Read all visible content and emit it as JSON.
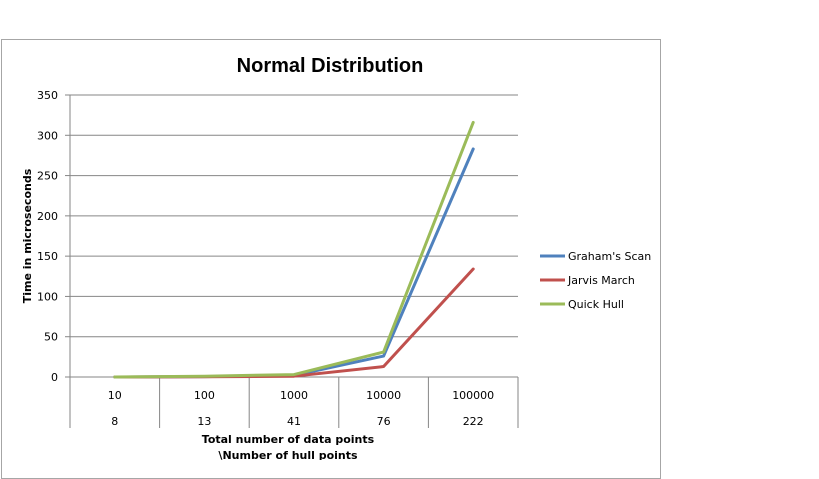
{
  "chart_data": {
    "type": "line",
    "title": "Normal Distribution",
    "xlabel": "Total number of data points",
    "xlabel2": "\\Number of hull points",
    "ylabel": "Time in microseconds",
    "ylim": [
      0,
      350
    ],
    "yticks": [
      0,
      50,
      100,
      150,
      200,
      250,
      300,
      350
    ],
    "categories": [
      "10",
      "100",
      "1000",
      "10000",
      "100000"
    ],
    "categories_row2": [
      "8",
      "13",
      "41",
      "76",
      "222"
    ],
    "grid": true,
    "legend_position": "right",
    "series": [
      {
        "name": "Graham's Scan",
        "color": "#4f81bd",
        "values": [
          0,
          0.5,
          2,
          26,
          283
        ]
      },
      {
        "name": "Jarvis March",
        "color": "#c0504d",
        "values": [
          0,
          0.3,
          1,
          13,
          134
        ]
      },
      {
        "name": "Quick Hull",
        "color": "#9bbb59",
        "values": [
          0,
          1,
          3,
          31,
          316
        ]
      }
    ]
  }
}
